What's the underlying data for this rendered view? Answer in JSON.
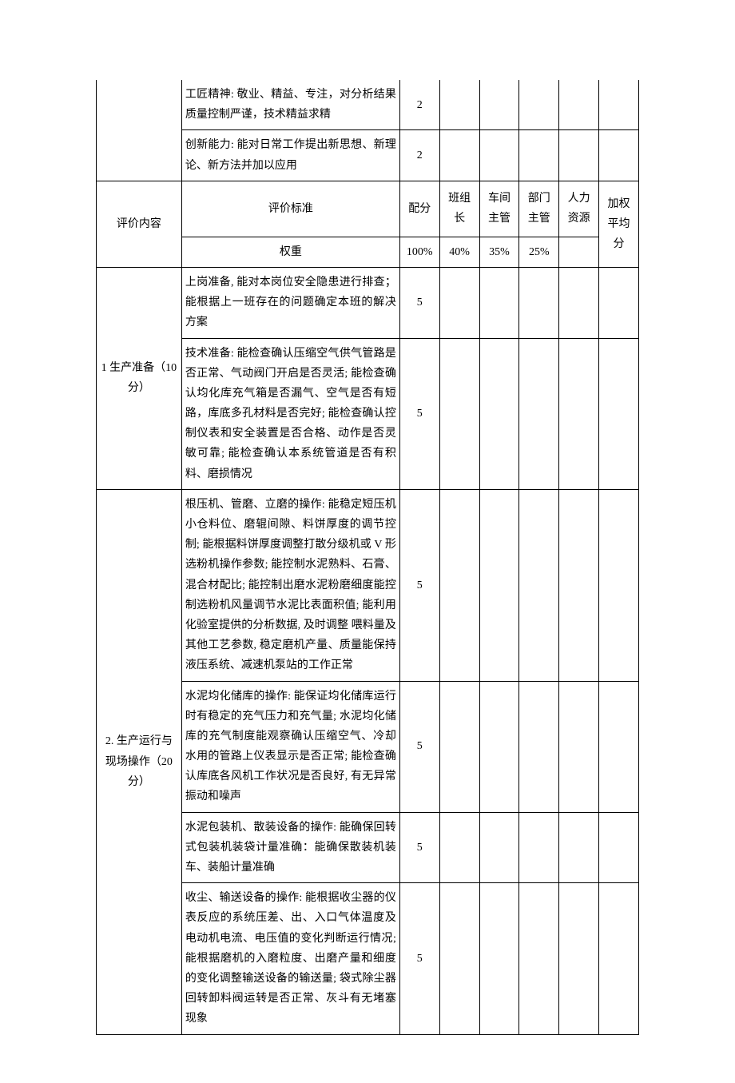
{
  "rows_top": [
    {
      "criteria": "工匠精神: 敬业、精益、专注，对分析结果质量控制严谨，技术精益求精",
      "score": "2"
    },
    {
      "criteria": "创新能力: 能对日常工作提出新思想、新理论、新方法并加以应用",
      "score": "2"
    }
  ],
  "header": {
    "content_label": "评价内容",
    "criteria_label": "评价标准",
    "score_label": "配分",
    "weight_label": "权重",
    "weight_total": "100%",
    "evaluators": [
      {
        "name": "班组长",
        "weight": "40%"
      },
      {
        "name": "车间主管",
        "weight": "35%"
      },
      {
        "name": "部门主管",
        "weight": "25%"
      },
      {
        "name": "人力资源",
        "weight": ""
      }
    ],
    "avg_label": "加权平均分"
  },
  "sections": [
    {
      "category": "1 生产准备（10 分）",
      "rows": [
        {
          "criteria": "上岗准备, 能对本岗位安全隐患进行排查；能根据上一班存在的问题确定本班的解决方案",
          "score": "5"
        },
        {
          "criteria": "技术准备: 能检查确认压缩空气供气管路是否正常、气动阀门开启是否灵活; 能检查确认均化库充气箱是否漏气、空气是否有短路，库底多孔材料是否完好; 能检查确认控制仪表和安全装置是否合格、动作是否灵敏可靠; 能检查确认本系统管道是否有积料、磨损情况",
          "score": "5"
        }
      ]
    },
    {
      "category": "2. 生产运行与现场操作（20 分）",
      "rows": [
        {
          "criteria": "根压机、管磨、立磨的操作: 能稳定短压机小仓料位、磨辊间隙、料饼厚度的调节控制; 能根据料饼厚度调整打散分级机或 V 形选粉机操作参数; 能控制水泥熟料、石膏、混合材配比; 能控制出磨水泥粉磨细度能控制选粉机风量调节水泥比表面积值; 能利用化验室提供的分析数据, 及时调整 喂料量及其他工艺参数, 稳定磨机产量、质量能保持液压系统、减速机泵站的工作正常",
          "score": "5"
        },
        {
          "criteria": "水泥均化储库的操作: 能保证均化储库运行时有稳定的充气压力和充气量; 水泥均化储库的充气制度能观察确认压缩空气、冷却水用的管路上仪表显示是否正常; 能检查确认库底各风机工作状况是否良好, 有无异常振动和噪声",
          "score": "5"
        },
        {
          "criteria": "水泥包装机、散装设备的操作: 能确保回转式包装机装袋计量准确：能确保散装机装车、装船计量准确",
          "score": "5"
        },
        {
          "criteria": "收尘、输送设备的操作: 能根据收尘器的仪表反应的系统压差、出、入口气体温度及电动机电流、电压值的变化判断运行情况; 能根据磨机的入磨粒度、出磨产量和细度的变化调整输送设备的输送量; 袋式除尘器回转卸料阀运转是否正常、灰斗有无堵塞现象",
          "score": "5"
        }
      ]
    }
  ]
}
